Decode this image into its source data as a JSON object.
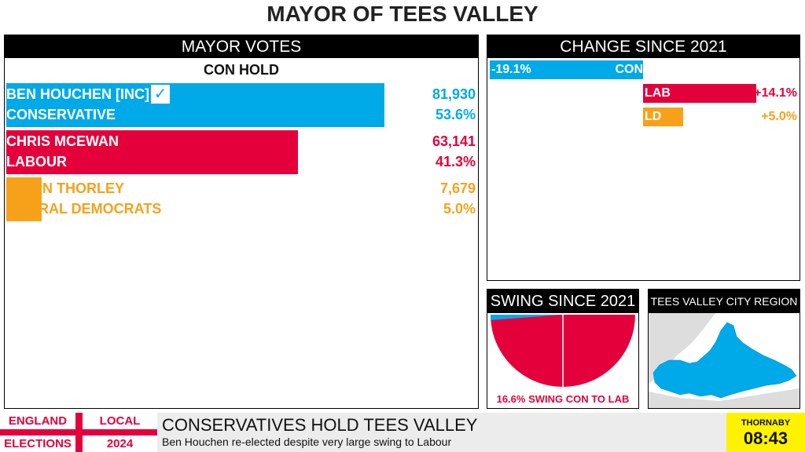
{
  "page": {
    "title": "MAYOR OF TEES VALLEY"
  },
  "mayor_votes": {
    "heading": "MAYOR VOTES",
    "status": "CON HOLD",
    "candidates": [
      {
        "name": "BEN HOUCHEN [INC]",
        "party": "CONSERVATIVE",
        "votes": "81,930",
        "share": "53.6%",
        "share_value": 53.6,
        "color": "#00a9e8",
        "winner": true
      },
      {
        "name": "CHRIS MCEWAN",
        "party": "LABOUR",
        "votes": "63,141",
        "share": "41.3%",
        "share_value": 41.3,
        "color": "#e4003b",
        "winner": false
      },
      {
        "name": "SIMON THORLEY",
        "party": "LIBERAL DEMOCRATS",
        "votes": "7,679",
        "share": "5.0%",
        "share_value": 5.0,
        "color": "#f7a11a",
        "winner": false
      }
    ]
  },
  "change": {
    "heading": "CHANGE SINCE 2021",
    "parties": [
      {
        "party": "CON",
        "change": "-19.1%",
        "value": -19.1,
        "color": "#00a9e8"
      },
      {
        "party": "LAB",
        "change": "+14.1%",
        "value": 14.1,
        "color": "#e4003b"
      },
      {
        "party": "LD",
        "change": "+5.0%",
        "value": 5.0,
        "color": "#f7a11a"
      }
    ]
  },
  "swing": {
    "heading": "SWING SINCE 2021",
    "caption": "16.6% SWING CON TO LAB",
    "from_color": "#00a9e8",
    "to_color": "#e4003b"
  },
  "region": {
    "heading": "TEES VALLEY CITY REGION",
    "region_color": "#00a9e8",
    "land_color": "#dddddd"
  },
  "ticker": {
    "logo_top_left": "ENGLAND",
    "logo_top_right": "LOCAL",
    "logo_bottom_left": "ELECTIONS",
    "logo_bottom_right": "2024",
    "headline": "CONSERVATIVES HOLD TEES VALLEY",
    "subline": "Ben Houchen re-elected despite very large swing to Labour",
    "location": "THORNABY",
    "time": "08:43"
  }
}
